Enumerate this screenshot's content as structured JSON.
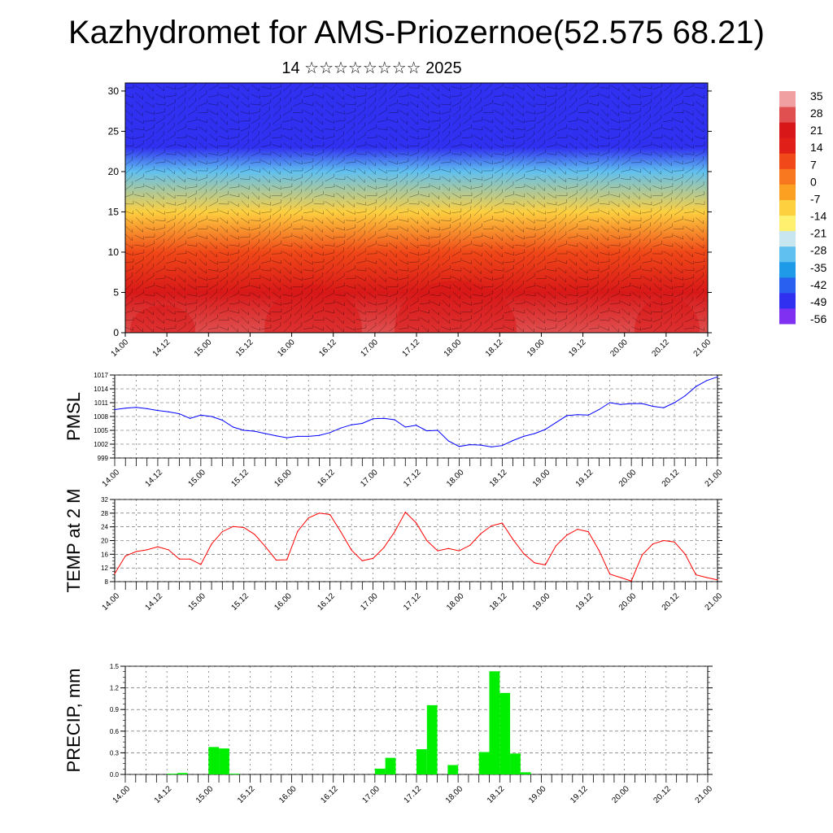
{
  "header": {
    "title": "Kazhydromet for AMS-Priozernoe(52.575 68.21)",
    "subtitle": "14 ☆☆☆☆☆☆☆☆ 2025"
  },
  "colors": {
    "pmsl_line": "#0000ff",
    "temp_line": "#ff0000",
    "precip_bar": "#00ee00",
    "colorbar": [
      "#8030f0",
      "#3030f0",
      "#2a60f0",
      "#1f9ae8",
      "#60c0f0",
      "#c8e6f0",
      "#fff070",
      "#fdd040",
      "#fba020",
      "#f87820",
      "#f04818",
      "#e02018",
      "#d81818",
      "#e05050",
      "#f0a0a0"
    ]
  },
  "chart_data": [
    {
      "type": "heatmap",
      "title": "",
      "xlabel": "",
      "ylabel": "",
      "x_tick_labels": [
        "14.00",
        "14.12",
        "15.00",
        "15.12",
        "16.00",
        "16.12",
        "17.00",
        "17.12",
        "18.00",
        "18.12",
        "19.00",
        "19.12",
        "20.00",
        "20.12",
        "21.00"
      ],
      "y_ticks": [
        0,
        5,
        10,
        15,
        20,
        25,
        30
      ],
      "ylim": [
        0,
        31
      ],
      "colorbar_labels": [
        "35",
        "28",
        "21",
        "14",
        "7",
        "0",
        "-7",
        "-14",
        "-21",
        "-28",
        "-35",
        "-42",
        "-49",
        "-56"
      ],
      "temperature_profile": [
        {
          "height": 0,
          "value": 30
        },
        {
          "height": 5,
          "value": 21
        },
        {
          "height": 10,
          "value": 7
        },
        {
          "height": 15,
          "value": -10
        },
        {
          "height": 20,
          "value": -35
        },
        {
          "height": 23,
          "value": -55
        },
        {
          "height": 26,
          "value": -52
        },
        {
          "height": 31,
          "value": -56
        }
      ]
    },
    {
      "type": "line",
      "ylabel": "PMSL",
      "y_tick_labels": [
        "1017",
        "1014",
        "1011",
        "1008",
        "1005",
        "1002",
        "999"
      ],
      "ylim": [
        999,
        1017
      ],
      "x_tick_labels": [
        "14.00",
        "14.12",
        "15.00",
        "15.12",
        "16.00",
        "16.12",
        "17.00",
        "17.12",
        "18.00",
        "18.12",
        "19.00",
        "19.12",
        "20.00",
        "20.12",
        "21.00"
      ],
      "x": [
        0,
        3,
        6,
        9,
        12,
        15,
        18,
        21,
        24,
        27,
        30,
        33,
        36,
        39,
        42,
        45,
        48,
        51,
        54,
        57,
        60,
        63,
        66,
        69,
        72,
        75,
        78,
        81,
        84,
        87,
        90,
        93,
        96,
        99,
        102,
        105,
        108,
        111,
        114,
        117,
        120,
        123,
        126,
        129,
        132,
        135,
        138,
        141,
        144,
        147,
        150,
        153,
        156,
        159,
        162,
        165,
        168
      ],
      "series": [
        {
          "values": [
            1009.5,
            1009.8,
            1010.0,
            1009.7,
            1009.3,
            1009.0,
            1008.6,
            1007.6,
            1008.3,
            1008.0,
            1007.2,
            1005.7,
            1005.0,
            1004.8,
            1004.3,
            1003.8,
            1003.4,
            1003.7,
            1003.7,
            1003.9,
            1004.5,
            1005.5,
            1006.2,
            1006.5,
            1007.5,
            1007.6,
            1007.3,
            1005.7,
            1006.1,
            1004.9,
            1005.0,
            1002.7,
            1001.5,
            1001.9,
            1001.8,
            1001.4,
            1001.7,
            1002.8,
            1003.7,
            1004.3,
            1005.2,
            1006.7,
            1008.2,
            1008.4,
            1008.3,
            1009.5,
            1011.0,
            1010.6,
            1010.8,
            1010.8,
            1010.2,
            1009.9,
            1011.0,
            1012.5,
            1014.5,
            1015.8,
            1016.6
          ]
        }
      ]
    },
    {
      "type": "line",
      "ylabel": "TEMP at 2 M",
      "y_tick_labels": [
        "32",
        "28",
        "24",
        "20",
        "16",
        "12",
        "8"
      ],
      "ylim": [
        8,
        32
      ],
      "x_tick_labels": [
        "14.00",
        "14.12",
        "15.00",
        "15.12",
        "16.00",
        "16.12",
        "17.00",
        "17.12",
        "18.00",
        "18.12",
        "19.00",
        "19.12",
        "20.00",
        "20.12",
        "21.00"
      ],
      "x": [
        0,
        3,
        6,
        9,
        12,
        15,
        18,
        21,
        24,
        27,
        30,
        33,
        36,
        39,
        42,
        45,
        48,
        51,
        54,
        57,
        60,
        63,
        66,
        69,
        72,
        75,
        78,
        81,
        84,
        87,
        90,
        93,
        96,
        99,
        102,
        105,
        108,
        111,
        114,
        117,
        120,
        123,
        126,
        129,
        132,
        135,
        138,
        141,
        144,
        147,
        150,
        153,
        156,
        159,
        162,
        165,
        168
      ],
      "series": [
        {
          "values": [
            10.3,
            15.5,
            16.8,
            17.3,
            18.2,
            17.3,
            14.6,
            14.6,
            13.0,
            19.0,
            22.6,
            24.1,
            23.8,
            21.8,
            18.2,
            14.3,
            14.4,
            22.7,
            26.6,
            28.0,
            27.6,
            22.6,
            17.2,
            14.1,
            14.8,
            17.9,
            22.5,
            28.3,
            25.2,
            20.0,
            17.0,
            17.7,
            17.0,
            18.6,
            22.0,
            24.3,
            25.1,
            20.3,
            16.2,
            13.5,
            12.9,
            18.5,
            21.6,
            23.3,
            22.6,
            17.1,
            10.2,
            9.2,
            8.2,
            15.8,
            19.0,
            20.0,
            19.6,
            16.0,
            10.0,
            9.2,
            8.5
          ]
        }
      ]
    },
    {
      "type": "bar",
      "ylabel": "PRECIP, mm",
      "y_tick_labels": [
        "1.5",
        "1.2",
        "0.9",
        "0.6",
        "0.3",
        "0.0"
      ],
      "ylim": [
        0,
        1.5
      ],
      "x_tick_labels": [
        "14.00",
        "14.12",
        "15.00",
        "15.12",
        "16.00",
        "16.12",
        "17.00",
        "17.12",
        "18.00",
        "18.12",
        "19.00",
        "19.12",
        "20.00",
        "20.12",
        "21.00"
      ],
      "bar_hours": [
        12,
        15,
        24,
        27,
        30,
        72,
        75,
        84,
        87,
        93,
        102,
        105,
        108,
        111,
        114
      ],
      "values": [
        0.01,
        0.02,
        0.38,
        0.36,
        0.01,
        0.08,
        0.23,
        0.35,
        0.96,
        0.13,
        0.31,
        1.43,
        1.13,
        0.29,
        0.03
      ]
    }
  ]
}
